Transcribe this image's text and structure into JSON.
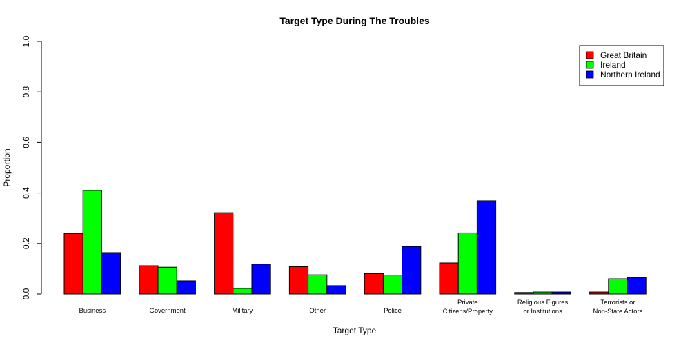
{
  "chart_data": {
    "type": "bar",
    "title": "Target Type During The Troubles",
    "xlabel": "Target Type",
    "ylabel": "Proportion",
    "ylim": [
      0,
      1
    ],
    "yticks": [
      "0.0",
      "0.2",
      "0.4",
      "0.6",
      "0.8",
      "1.0"
    ],
    "categories": [
      [
        "Business"
      ],
      [
        "Government"
      ],
      [
        "Military"
      ],
      [
        "Other"
      ],
      [
        "Police"
      ],
      [
        "Private",
        "Citizens/Property"
      ],
      [
        "Religious Figures",
        "or Institutions"
      ],
      [
        "Terrorists or",
        "Non-State Actors"
      ]
    ],
    "series": [
      {
        "name": "Great Britain",
        "color": "#ff0000",
        "values": [
          0.24,
          0.112,
          0.322,
          0.108,
          0.081,
          0.123,
          0.006,
          0.008
        ]
      },
      {
        "name": "Ireland",
        "color": "#00ff00",
        "values": [
          0.41,
          0.106,
          0.022,
          0.076,
          0.075,
          0.242,
          0.008,
          0.06
        ]
      },
      {
        "name": "Northern Ireland",
        "color": "#0000ff",
        "values": [
          0.164,
          0.052,
          0.118,
          0.033,
          0.188,
          0.369,
          0.008,
          0.065
        ]
      }
    ],
    "legend_position": "top-right"
  }
}
